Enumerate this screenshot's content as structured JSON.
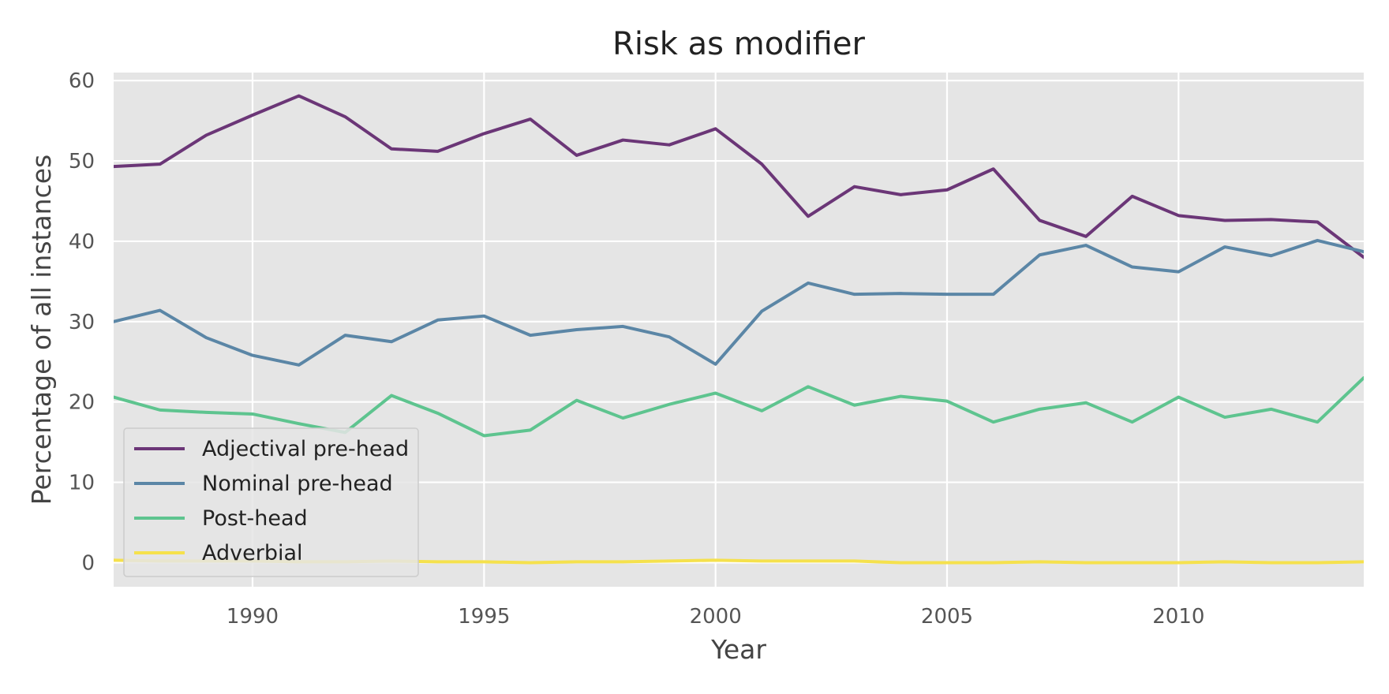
{
  "chart_data": {
    "type": "line",
    "title": "Risk as modifier",
    "xlabel": "Year",
    "ylabel": "Percentage of all instances",
    "xlim": [
      1987,
      2014
    ],
    "ylim": [
      -3,
      61
    ],
    "grid": true,
    "legend_position": "lower-left",
    "x_ticks": [
      1990,
      1995,
      2000,
      2005,
      2010
    ],
    "y_ticks": [
      0,
      10,
      20,
      30,
      40,
      50,
      60
    ],
    "x": [
      1987,
      1988,
      1989,
      1990,
      1991,
      1992,
      1993,
      1994,
      1995,
      1996,
      1997,
      1998,
      1999,
      2000,
      2001,
      2002,
      2003,
      2004,
      2005,
      2006,
      2007,
      2008,
      2009,
      2010,
      2011,
      2012,
      2013,
      2014
    ],
    "series": [
      {
        "name": "Adjectival pre-head",
        "color": "#6b3677",
        "values": [
          49.3,
          49.6,
          53.2,
          55.7,
          58.1,
          55.5,
          51.5,
          51.2,
          53.4,
          55.2,
          50.7,
          52.6,
          52.0,
          54.0,
          49.6,
          43.1,
          46.8,
          45.8,
          46.4,
          49.0,
          42.6,
          40.6,
          45.6,
          43.2,
          42.6,
          42.7,
          42.4,
          38.0
        ]
      },
      {
        "name": "Nominal pre-head",
        "color": "#5b86a6",
        "values": [
          30.0,
          31.4,
          28.0,
          25.8,
          24.6,
          28.3,
          27.5,
          30.2,
          30.7,
          28.3,
          29.0,
          29.4,
          28.1,
          24.7,
          31.3,
          34.8,
          33.4,
          33.5,
          33.4,
          33.4,
          38.3,
          39.5,
          36.8,
          36.2,
          39.3,
          38.2,
          40.1,
          38.7
        ]
      },
      {
        "name": "Post-head",
        "color": "#5ec48f",
        "values": [
          20.6,
          19.0,
          18.7,
          18.5,
          17.3,
          16.2,
          20.8,
          18.6,
          15.8,
          16.5,
          20.2,
          18.0,
          19.7,
          21.1,
          18.9,
          21.9,
          19.6,
          20.7,
          20.1,
          17.5,
          19.1,
          19.9,
          17.5,
          20.6,
          18.1,
          19.1,
          17.5,
          23.0
        ]
      },
      {
        "name": "Adverbial",
        "color": "#f5e14d",
        "values": [
          0.3,
          0.2,
          0.2,
          0.2,
          0.1,
          0.1,
          0.2,
          0.1,
          0.1,
          0.0,
          0.1,
          0.1,
          0.2,
          0.3,
          0.2,
          0.2,
          0.2,
          0.0,
          0.0,
          0.0,
          0.1,
          0.0,
          0.0,
          0.0,
          0.1,
          0.0,
          0.0,
          0.1
        ]
      }
    ]
  }
}
